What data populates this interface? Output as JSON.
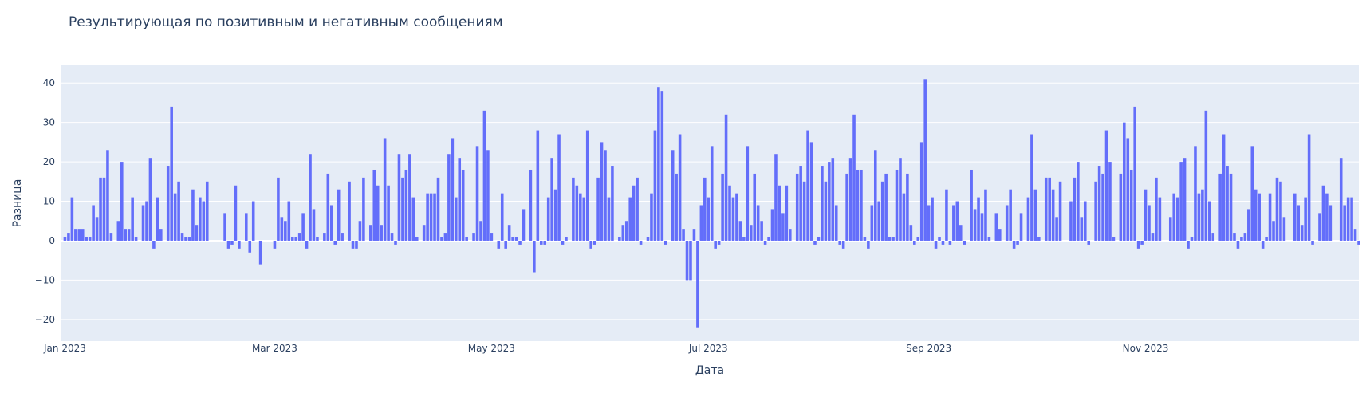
{
  "chart_data": {
    "type": "bar",
    "title": "Результирующая по позитивным и негативным сообщениям",
    "xlabel": "Дата",
    "ylabel": "Разница",
    "x_start": "2023-01-01",
    "x_ticks": [
      {
        "date": "2023-01-01",
        "label": "Jan 2023"
      },
      {
        "date": "2023-03-01",
        "label": "Mar 2023"
      },
      {
        "date": "2023-05-01",
        "label": "May 2023"
      },
      {
        "date": "2023-07-01",
        "label": "Jul 2023"
      },
      {
        "date": "2023-09-01",
        "label": "Sep 2023"
      },
      {
        "date": "2023-11-01",
        "label": "Nov 2023"
      }
    ],
    "y_ticks": [
      -20,
      -10,
      0,
      10,
      20,
      30,
      40
    ],
    "ylim": [
      -25.5,
      44.5
    ],
    "xlim": [
      "2022-12-31",
      "2023-12-31"
    ],
    "grid": true,
    "colors": {
      "bar": "#636efa",
      "plot_bg": "#e5ecf6",
      "grid": "#ffffff",
      "text": "#2a3f5f"
    },
    "series": [
      {
        "values": [
          1,
          2,
          11,
          3,
          3,
          3,
          1,
          1,
          9,
          6,
          16,
          16,
          23,
          2,
          0,
          5,
          20,
          3,
          3,
          11,
          1,
          0,
          9,
          10,
          21,
          -2,
          11,
          3,
          0,
          19,
          34,
          12,
          15,
          2,
          1,
          1,
          13,
          4,
          11,
          10,
          15,
          0,
          0,
          0,
          0,
          7,
          -2,
          -1,
          14,
          -2,
          0,
          7,
          -3,
          10,
          0,
          -6,
          0,
          0,
          0,
          -2,
          16,
          6,
          5,
          10,
          1,
          1,
          2,
          7,
          -2,
          22,
          8,
          1,
          0,
          2,
          17,
          9,
          -1,
          13,
          2,
          0,
          15,
          -2,
          -2,
          5,
          16,
          0,
          4,
          18,
          14,
          4,
          26,
          14,
          2,
          -1,
          22,
          16,
          18,
          22,
          11,
          1,
          0,
          4,
          12,
          12,
          12,
          16,
          1,
          2,
          22,
          26,
          11,
          21,
          18,
          1,
          0,
          2,
          24,
          5,
          33,
          23,
          2,
          0,
          -2,
          12,
          -2,
          4,
          1,
          1,
          -1,
          8,
          0,
          18,
          -8,
          28,
          -1,
          -1,
          11,
          21,
          13,
          27,
          -1,
          1,
          0,
          16,
          14,
          12,
          11,
          28,
          -2,
          -1,
          16,
          25,
          23,
          11,
          19,
          0,
          1,
          4,
          5,
          11,
          14,
          16,
          -1,
          0,
          1,
          12,
          28,
          39,
          38,
          -1,
          0,
          23,
          17,
          27,
          3,
          -10,
          -10,
          3,
          -22,
          9,
          16,
          11,
          24,
          -2,
          -1,
          17,
          32,
          14,
          11,
          12,
          5,
          1,
          24,
          4,
          17,
          9,
          5,
          -1,
          1,
          8,
          22,
          14,
          7,
          14,
          3,
          0,
          17,
          19,
          15,
          28,
          25,
          -1,
          1,
          19,
          15,
          20,
          21,
          9,
          -1,
          -2,
          17,
          21,
          32,
          18,
          18,
          1,
          -2,
          9,
          23,
          10,
          15,
          17,
          1,
          1,
          18,
          21,
          12,
          17,
          4,
          -1,
          1,
          25,
          41,
          9,
          11,
          -2,
          1,
          -1,
          13,
          -1,
          9,
          10,
          4,
          -1,
          0,
          18,
          8,
          11,
          7,
          13,
          1,
          0,
          7,
          3,
          0,
          9,
          13,
          -2,
          -1,
          7,
          0,
          11,
          27,
          13,
          1,
          0,
          16,
          16,
          13,
          6,
          15,
          0,
          0,
          10,
          16,
          20,
          6,
          10,
          -1,
          0,
          15,
          19,
          17,
          28,
          20,
          1,
          0,
          17,
          30,
          26,
          18,
          34,
          -2,
          -1,
          13,
          9,
          2,
          16,
          11,
          0,
          0,
          6,
          12,
          11,
          20,
          21,
          -2,
          1,
          24,
          12,
          13,
          33,
          10,
          2,
          0,
          17,
          27,
          19,
          17,
          2,
          -2,
          1,
          2,
          8,
          24,
          13,
          12,
          -2,
          1,
          12,
          5,
          16,
          15,
          6,
          0,
          0,
          12,
          9,
          4,
          11,
          27,
          -1,
          0,
          7,
          14,
          12,
          9,
          0,
          0,
          21,
          9,
          11,
          11,
          3,
          -1
        ]
      }
    ]
  }
}
